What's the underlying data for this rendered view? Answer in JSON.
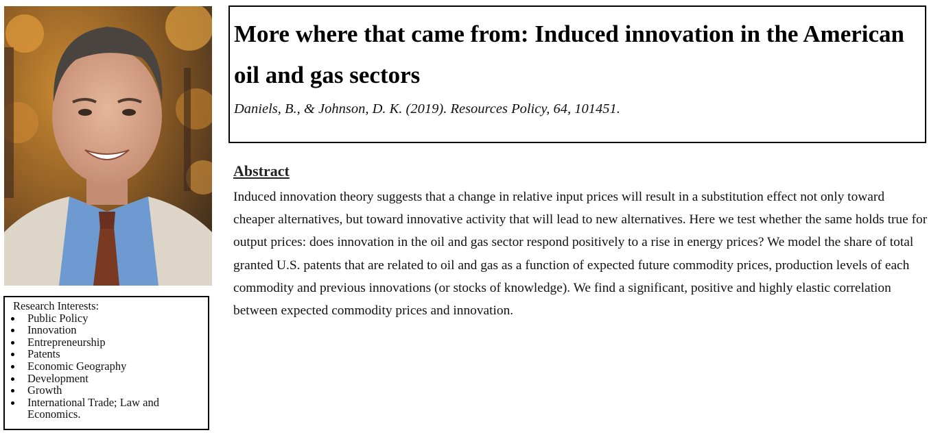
{
  "profile": {
    "photo_icon": "person-portrait"
  },
  "interests": {
    "title": "Research Interests:",
    "items": [
      "Public Policy",
      "Innovation",
      "Entrepreneurship",
      "Patents",
      "Economic Geography",
      "Development",
      "Growth",
      "International Trade; Law and Economics."
    ]
  },
  "paper": {
    "title": "More where that came from: Induced innovation in the American oil and gas sectors",
    "citation": "Daniels, B., & Johnson, D. K. (2019). Resources Policy, 64, 101451."
  },
  "abstract": {
    "heading": "Abstract",
    "text": "Induced innovation theory suggests that a change in relative input prices will result in a substitution effect not only toward cheaper alternatives, but toward innovative activity that will lead to new alternatives. Here we test whether the same holds true for output prices: does innovation in the oil and gas sector respond positively to a rise in energy prices? We model the share of total granted U.S. patents that are related to oil and gas as a function of expected future commodity prices, production levels of each commodity and previous innovations (or stocks of knowledge). We find a significant, positive and highly elastic correlation between expected commodity prices and innovation."
  }
}
